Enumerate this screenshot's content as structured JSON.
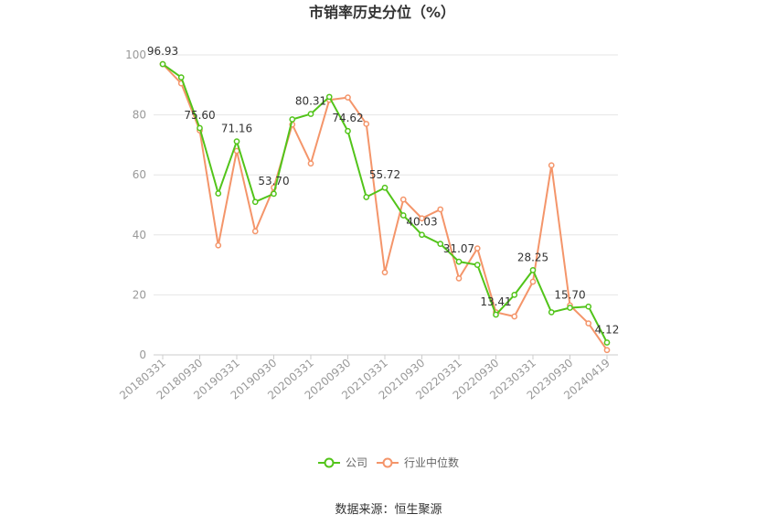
{
  "chart_data": {
    "type": "line",
    "title": "市销率历史分位（%）",
    "source": "数据来源：恒生聚源",
    "ylim": [
      0,
      100
    ],
    "yticks": [
      "0",
      "20",
      "40",
      "60",
      "80",
      "100"
    ],
    "grid": true,
    "legend_position": "bottom",
    "x": [
      "20180331",
      "20180630",
      "20180930",
      "20181231",
      "20190331",
      "20190630",
      "20190930",
      "20191231",
      "20200331",
      "20200630",
      "20200930",
      "20201231",
      "20210331",
      "20210630",
      "20210930",
      "20211231",
      "20220331",
      "20220630",
      "20220930",
      "20221231",
      "20230331",
      "20230630",
      "20230930",
      "20231231",
      "20240419"
    ],
    "xtick_labels": [
      "20180331",
      "20180930",
      "20190331",
      "20190930",
      "20200331",
      "20200930",
      "20210331",
      "20210930",
      "20220331",
      "20220930",
      "20230331",
      "20230930",
      "20240419"
    ],
    "series": [
      {
        "name": "公司",
        "color": "#52c41a",
        "values": [
          96.93,
          92.5,
          75.6,
          53.8,
          71.16,
          51.0,
          53.7,
          78.5,
          80.31,
          86.0,
          74.62,
          52.6,
          55.72,
          46.5,
          40.03,
          37.0,
          31.07,
          30.0,
          13.41,
          20.0,
          28.25,
          14.2,
          15.7,
          16.1,
          4.12
        ],
        "labels": {
          "0": "96.93",
          "2": "75.60",
          "4": "71.16",
          "6": "53.70",
          "8": "80.31",
          "10": "74.62",
          "12": "55.72",
          "14": "40.03",
          "16": "31.07",
          "18": "13.41",
          "20": "28.25",
          "22": "15.70",
          "24": "4.12"
        }
      },
      {
        "name": "行业中位数",
        "color": "#f4956a",
        "values": [
          96.93,
          90.5,
          74.8,
          36.5,
          68.0,
          41.2,
          55.8,
          76.8,
          63.8,
          85.0,
          85.8,
          77.0,
          27.5,
          51.8,
          45.5,
          48.5,
          25.5,
          35.5,
          14.2,
          12.8,
          24.4,
          63.2,
          16.5,
          10.5,
          1.6
        ]
      }
    ]
  }
}
